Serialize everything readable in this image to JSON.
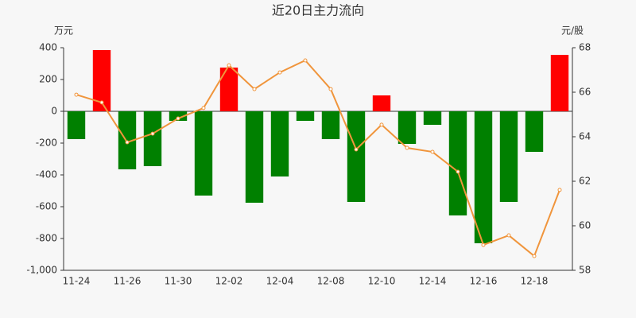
{
  "chart_data": {
    "type": "bar-line",
    "title": "近20日主力流向",
    "y_label": "万元",
    "y2_label": "元/股",
    "categories": [
      "11-24",
      null,
      "11-26",
      null,
      "11-30",
      null,
      "12-02",
      null,
      "12-04",
      null,
      "12-08",
      null,
      "12-10",
      null,
      "12-14",
      null,
      "12-16",
      null,
      "12-18",
      null
    ],
    "series": [
      {
        "type": "bar",
        "positive_color": "#ff0000",
        "negative_color": "#008000",
        "values": [
          -175,
          385,
          -365,
          -345,
          -60,
          -530,
          275,
          -575,
          -410,
          -60,
          -175,
          -570,
          100,
          -205,
          -85,
          -655,
          -830,
          -570,
          -255,
          355
        ]
      },
      {
        "type": "line",
        "axis": "y2",
        "color": "#f0953c",
        "values": [
          65.89,
          65.54,
          63.75,
          64.14,
          64.82,
          65.29,
          67.21,
          66.14,
          66.89,
          67.43,
          66.14,
          63.43,
          64.54,
          63.5,
          63.32,
          62.43,
          59.14,
          59.57,
          58.64,
          61.61
        ]
      }
    ],
    "ylim": [
      -1000,
      400
    ],
    "yticks": [
      {
        "value": -1000,
        "label": "-1,000"
      },
      -800,
      -600,
      -400,
      -200,
      0,
      200,
      400
    ],
    "y2lim": [
      58,
      68
    ],
    "y2ticks": [
      58,
      60,
      62,
      64,
      66,
      68
    ]
  }
}
